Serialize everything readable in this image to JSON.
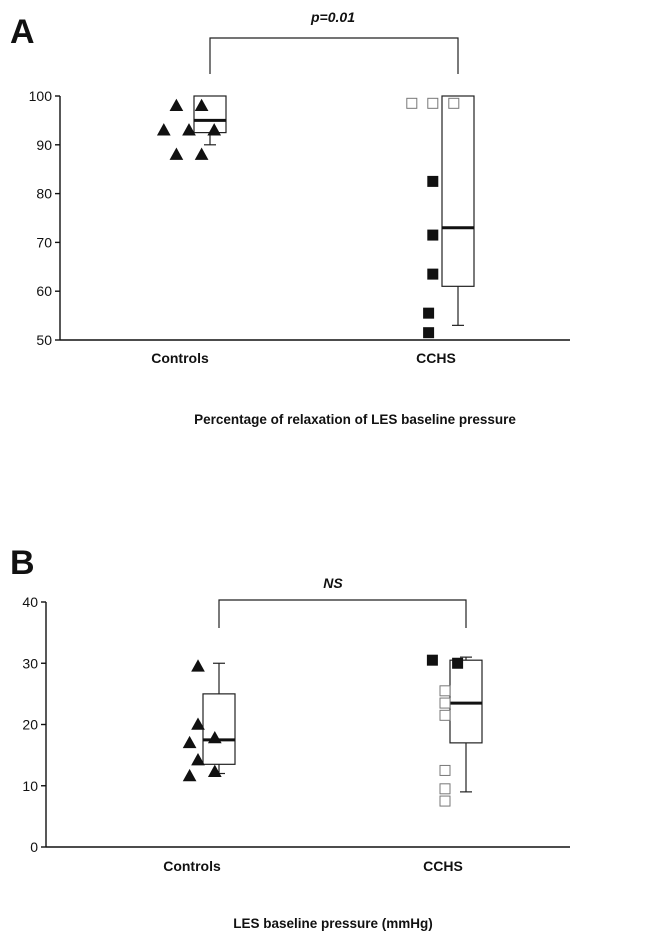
{
  "chart_data": [
    {
      "panel": "A",
      "type": "box-scatter",
      "caption": "Percentage of relaxation of LES baseline pressure",
      "ylim": [
        50,
        100
      ],
      "yticks": [
        50,
        60,
        70,
        80,
        90,
        100
      ],
      "categories": [
        "Controls",
        "CCHS"
      ],
      "significance": "p=0.01",
      "groups": [
        {
          "label": "Controls",
          "points": [
            {
              "shape": "triangle",
              "filled": true,
              "x": -0.16,
              "y": 98
            },
            {
              "shape": "triangle",
              "filled": true,
              "x": -0.04,
              "y": 98
            },
            {
              "shape": "triangle",
              "filled": true,
              "x": -0.22,
              "y": 93
            },
            {
              "shape": "triangle",
              "filled": true,
              "x": -0.1,
              "y": 93
            },
            {
              "shape": "triangle",
              "filled": true,
              "x": 0.02,
              "y": 93
            },
            {
              "shape": "triangle",
              "filled": true,
              "x": -0.16,
              "y": 88
            },
            {
              "shape": "triangle",
              "filled": true,
              "x": -0.04,
              "y": 88
            }
          ],
          "box": {
            "min": 90,
            "q1": 92.5,
            "median": 95,
            "q3": 100,
            "max": 100
          }
        },
        {
          "label": "CCHS",
          "points": [
            {
              "shape": "square",
              "filled": false,
              "x": -0.22,
              "y": 98.5
            },
            {
              "shape": "square",
              "filled": false,
              "x": -0.12,
              "y": 98.5
            },
            {
              "shape": "square",
              "filled": false,
              "x": -0.02,
              "y": 98.5
            },
            {
              "shape": "square",
              "filled": true,
              "x": -0.12,
              "y": 82.5
            },
            {
              "shape": "square",
              "filled": true,
              "x": -0.12,
              "y": 71.5
            },
            {
              "shape": "square",
              "filled": true,
              "x": -0.12,
              "y": 63.5
            },
            {
              "shape": "square",
              "filled": true,
              "x": -0.14,
              "y": 55.5
            },
            {
              "shape": "square",
              "filled": true,
              "x": -0.14,
              "y": 51.5
            }
          ],
          "box": {
            "min": 53,
            "q1": 61,
            "median": 73,
            "q3": 100,
            "max": 100
          }
        }
      ]
    },
    {
      "panel": "B",
      "type": "box-scatter",
      "caption": "LES baseline pressure (mmHg)",
      "ylim": [
        0,
        40
      ],
      "yticks": [
        0,
        10,
        20,
        30,
        40
      ],
      "categories": [
        "Controls",
        "CCHS"
      ],
      "significance": "NS",
      "groups": [
        {
          "label": "Controls",
          "points": [
            {
              "shape": "triangle",
              "filled": true,
              "x": -0.1,
              "y": 29.5
            },
            {
              "shape": "triangle",
              "filled": true,
              "x": -0.1,
              "y": 20
            },
            {
              "shape": "triangle",
              "filled": true,
              "x": -0.02,
              "y": 17.8
            },
            {
              "shape": "triangle",
              "filled": true,
              "x": -0.14,
              "y": 17
            },
            {
              "shape": "triangle",
              "filled": true,
              "x": -0.1,
              "y": 14.2
            },
            {
              "shape": "triangle",
              "filled": true,
              "x": -0.02,
              "y": 12.3
            },
            {
              "shape": "triangle",
              "filled": true,
              "x": -0.14,
              "y": 11.6
            }
          ],
          "box": {
            "min": 12,
            "q1": 13.5,
            "median": 17.5,
            "q3": 25,
            "max": 30
          }
        },
        {
          "label": "CCHS",
          "points": [
            {
              "shape": "square",
              "filled": true,
              "x": -0.16,
              "y": 30.5
            },
            {
              "shape": "square",
              "filled": true,
              "x": -0.04,
              "y": 30
            },
            {
              "shape": "square",
              "filled": false,
              "x": -0.1,
              "y": 25.5
            },
            {
              "shape": "square",
              "filled": false,
              "x": -0.1,
              "y": 23.5
            },
            {
              "shape": "square",
              "filled": false,
              "x": -0.1,
              "y": 21.5
            },
            {
              "shape": "square",
              "filled": false,
              "x": -0.1,
              "y": 12.5
            },
            {
              "shape": "square",
              "filled": false,
              "x": -0.1,
              "y": 9.5
            },
            {
              "shape": "square",
              "filled": false,
              "x": -0.1,
              "y": 7.5
            }
          ],
          "box": {
            "min": 9,
            "q1": 17,
            "median": 23.5,
            "q3": 30.5,
            "max": 31
          }
        }
      ]
    }
  ]
}
